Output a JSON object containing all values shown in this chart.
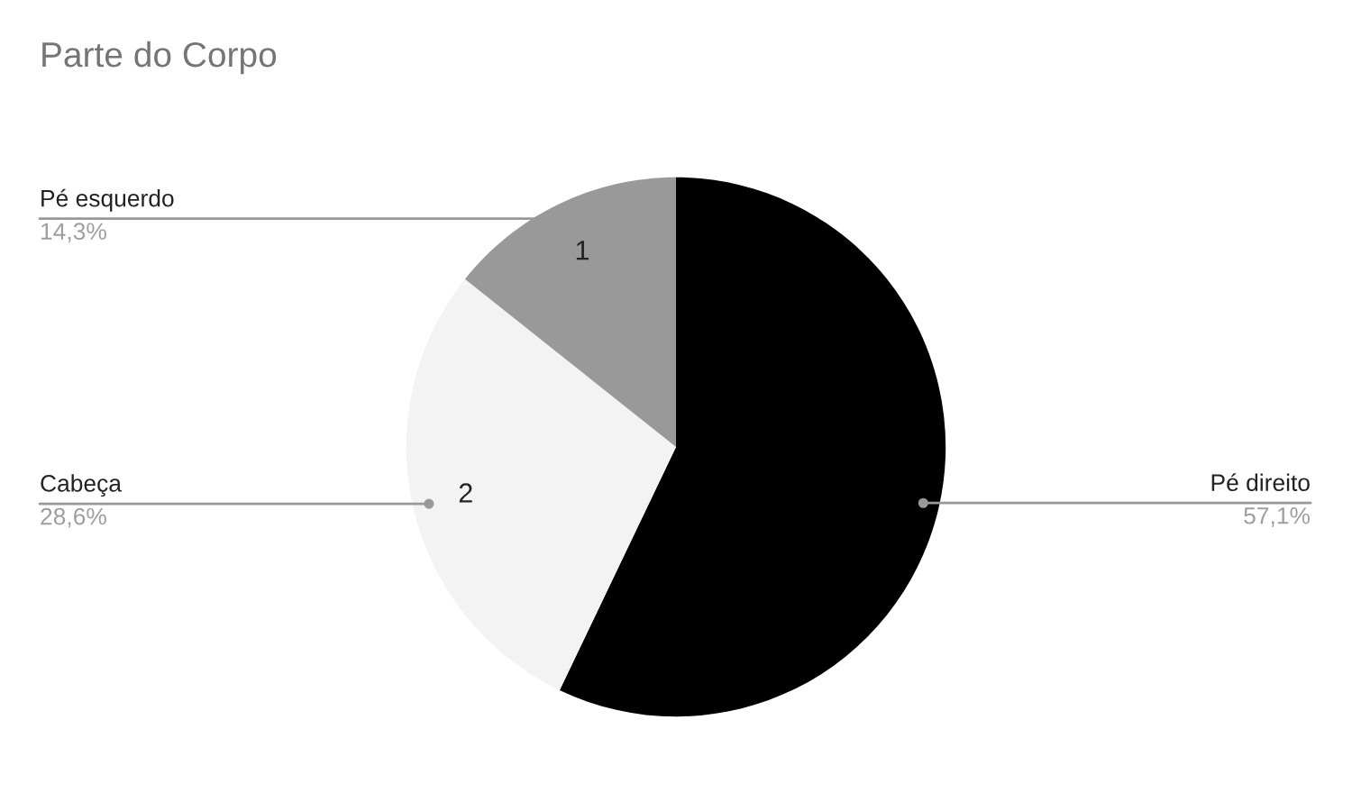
{
  "chart_data": {
    "type": "pie",
    "title": "Parte do Corpo",
    "categories": [
      "Pé direito",
      "Cabeça",
      "Pé esquerdo"
    ],
    "values": [
      57.1,
      28.6,
      14.3
    ],
    "colors": [
      "#000000",
      "#f3f3f3",
      "#999999"
    ],
    "value_labels": [
      "57,1%",
      "28,6%",
      "14,3%"
    ],
    "annotations": [
      {
        "text": "2",
        "x": "Cabeça"
      },
      {
        "text": "1",
        "x": "Pé esquerdo"
      }
    ]
  }
}
